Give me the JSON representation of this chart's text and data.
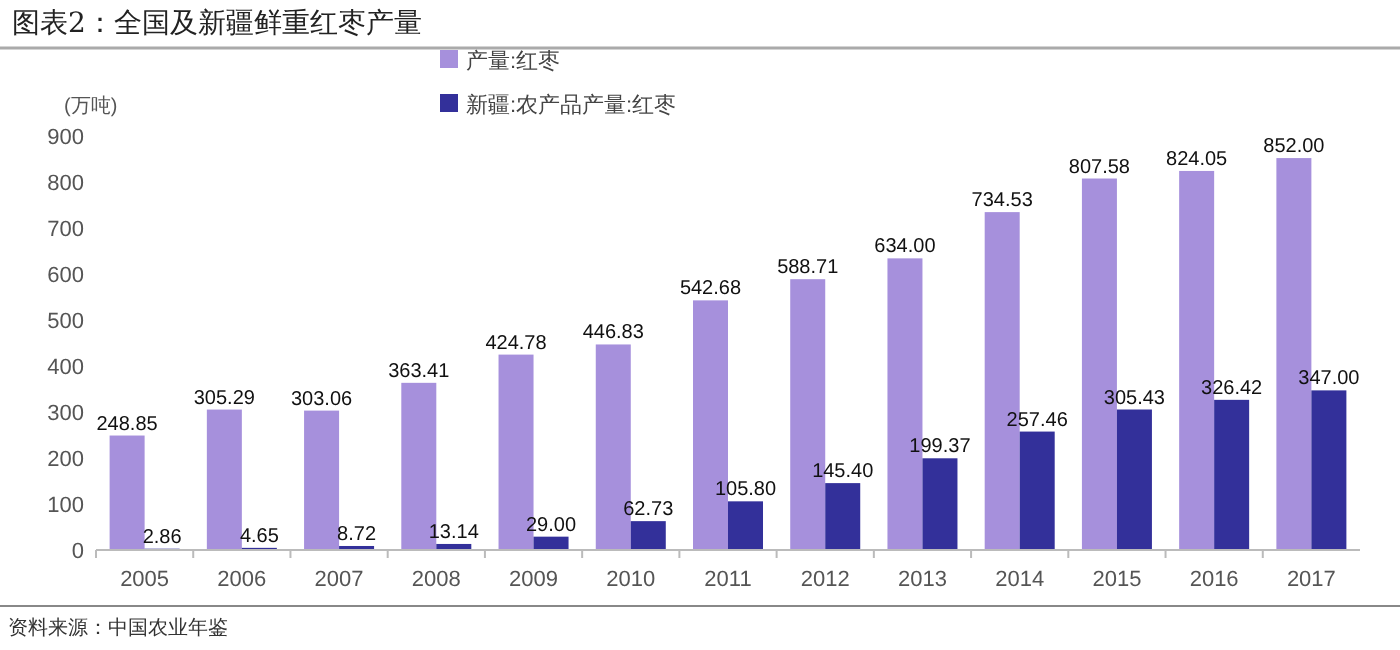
{
  "chart_data": {
    "type": "bar",
    "title": "图表2：全国及新疆鲜重红枣产量",
    "ylabel": "(万吨)",
    "categories": [
      "2005",
      "2006",
      "2007",
      "2008",
      "2009",
      "2010",
      "2011",
      "2012",
      "2013",
      "2014",
      "2015",
      "2016",
      "2017"
    ],
    "series": [
      {
        "name": "产量:红枣",
        "color": "#a690dc",
        "values": [
          248.85,
          305.29,
          303.06,
          363.41,
          424.78,
          446.83,
          542.68,
          588.71,
          634.0,
          734.53,
          807.58,
          824.05,
          852.0
        ],
        "value_labels": [
          "248.85",
          "305.29",
          "303.06",
          "363.41",
          "424.78",
          "446.83",
          "542.68",
          "588.71",
          "634.00",
          "734.53",
          "807.58",
          "824.05",
          "852.00"
        ]
      },
      {
        "name": "新疆:农产品产量:红枣",
        "color": "#33309a",
        "values": [
          2.86,
          4.65,
          8.72,
          13.14,
          29.0,
          62.73,
          105.8,
          145.4,
          199.37,
          257.46,
          305.43,
          326.42,
          347.0
        ],
        "value_labels": [
          "2.86",
          "4.65",
          "8.72",
          "13.14",
          "29.00",
          "62.73",
          "105.80",
          "145.40",
          "199.37",
          "257.46",
          "305.43",
          "326.42",
          "347.00"
        ]
      }
    ],
    "ylim": [
      0,
      900
    ],
    "yticks": [
      0,
      100,
      200,
      300,
      400,
      500,
      600,
      700,
      800,
      900
    ],
    "grid": false,
    "legend": "top",
    "annotations": [
      "资料来源：中国农业年鉴"
    ]
  }
}
